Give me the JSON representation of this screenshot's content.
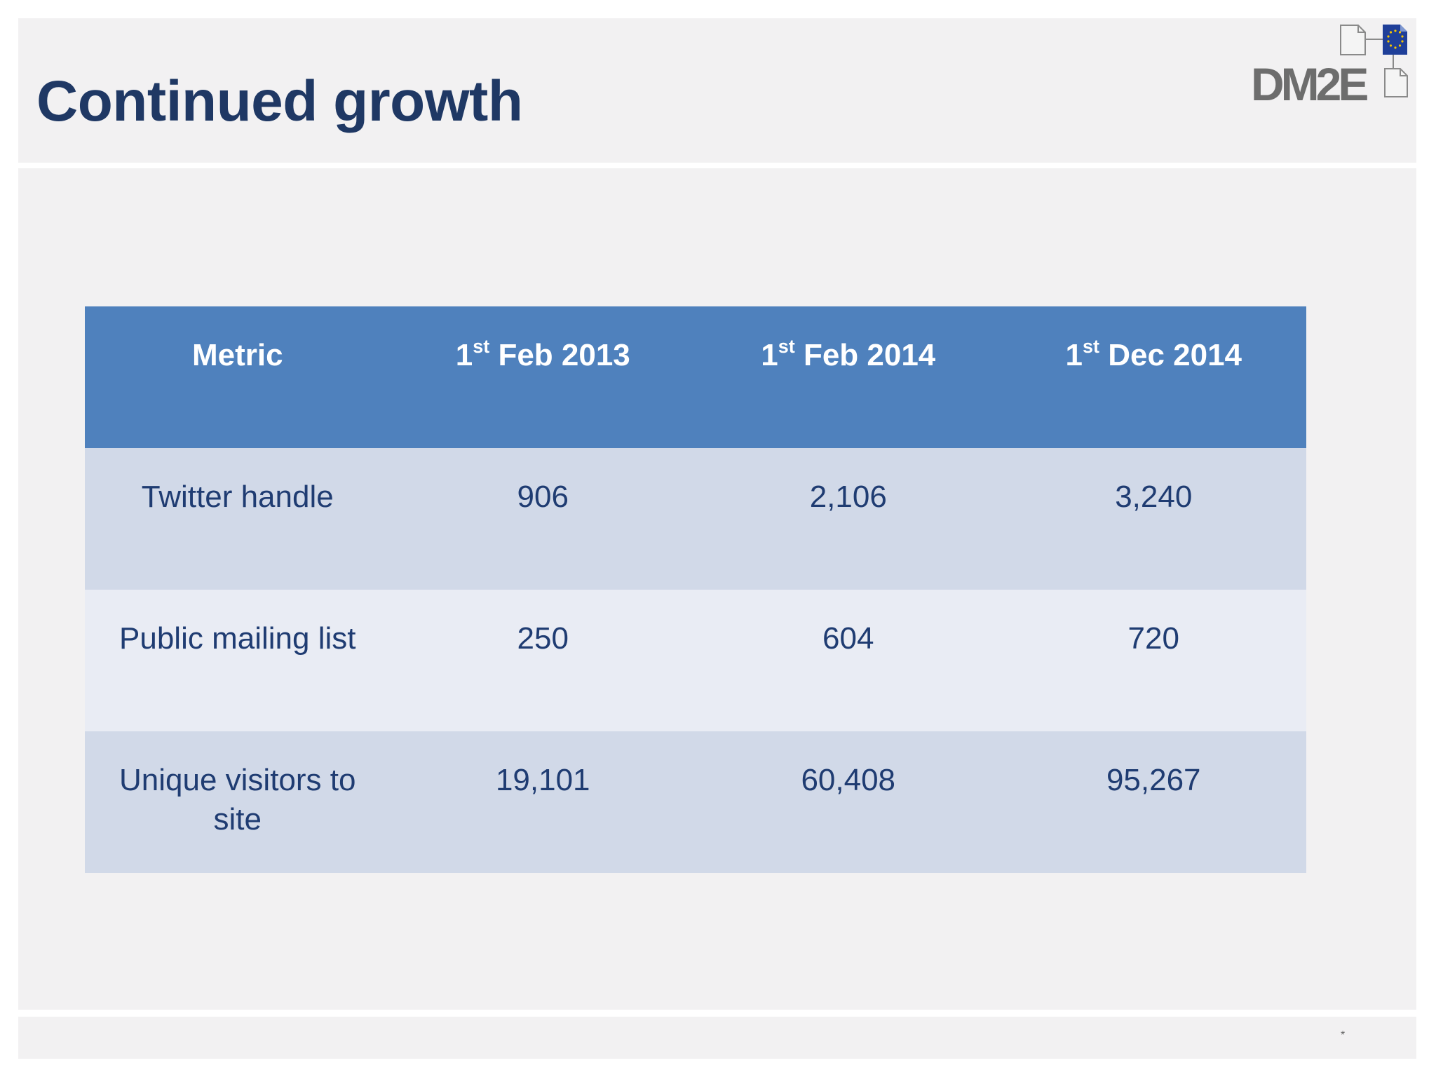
{
  "slide": {
    "title": "Continued growth",
    "footer_marker": "*"
  },
  "logo": {
    "text": "DM2E",
    "icon": "dm2e-logo-with-eu-flag"
  },
  "table": {
    "columns": [
      {
        "label": "Metric",
        "ordinal": "",
        "ordinal_suffix": ""
      },
      {
        "label": " Feb 2013",
        "ordinal": "1",
        "ordinal_suffix": "st"
      },
      {
        "label": " Feb 2014",
        "ordinal": "1",
        "ordinal_suffix": "st"
      },
      {
        "label": " Dec 2014",
        "ordinal": "1",
        "ordinal_suffix": "st"
      }
    ],
    "rows": [
      {
        "metric": "Twitter handle",
        "values": [
          "906",
          "2,106",
          "3,240"
        ]
      },
      {
        "metric": "Public mailing list",
        "values": [
          "250",
          "604",
          "720"
        ]
      },
      {
        "metric": "Unique visitors to site",
        "values": [
          "19,101",
          "60,408",
          "95,267"
        ]
      }
    ]
  },
  "colors": {
    "title": "#1f3864",
    "header_fill": "#4f81bd",
    "row_dark": "#d1d9e8",
    "row_light": "#e9ecf4",
    "cell_text": "#1f3c72",
    "panel": "#f2f1f2"
  }
}
